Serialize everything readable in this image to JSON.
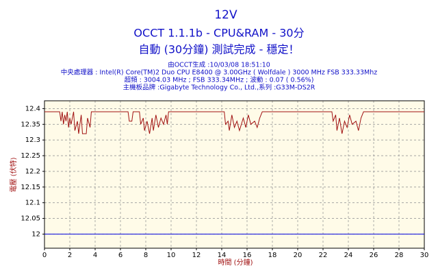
{
  "chart_data": {
    "type": "line",
    "title": "12V",
    "subtitle": "OCCT 1.1.1b - CPU&RAM - 30分",
    "status": "自動 (30分鐘) 測試完成 - 穩定！",
    "info": [
      "由OCCT生成 :10/03/08 18:51:10",
      "中央處理器 : Intel(R) Core(TM)2 Duo CPU E8400 @ 3.00GHz ( Wolfdale ) 3000 MHz FSB 333.33Mhz",
      "超頻 : 3004.03 MHz ; FSB 333.34MHz ; 波動 : 0.07 ( 0.56%)",
      "主機板品牌 :Gigabyte Technology Co., Ltd.,系列 :G33M-DS2R"
    ],
    "xlabel": "時間 (分鐘)",
    "ylabel": "電壓 (伏特)",
    "xlim": [
      0,
      30
    ],
    "xticks": [
      0,
      2,
      4,
      6,
      8,
      10,
      12,
      14,
      16,
      18,
      20,
      22,
      24,
      26,
      28,
      30
    ],
    "ylim": [
      11.955,
      12.425
    ],
    "yticks": [
      12,
      12.05,
      12.1,
      12.15,
      12.2,
      12.25,
      12.3,
      12.35,
      12.4
    ],
    "grid": true,
    "series": [
      {
        "color": "#a01010",
        "x": [
          0,
          1.2,
          1.3,
          1.4,
          1.5,
          1.6,
          1.7,
          1.8,
          1.9,
          2.0,
          2.1,
          2.3,
          2.4,
          2.6,
          2.7,
          2.9,
          3.0,
          3.3,
          3.4,
          3.6,
          3.7,
          6.6,
          6.7,
          6.9,
          7.0,
          7.5,
          7.6,
          7.8,
          7.9,
          8.1,
          8.3,
          8.5,
          8.6,
          8.8,
          9.0,
          9.2,
          9.4,
          9.6,
          9.7,
          9.8,
          14.2,
          14.3,
          14.5,
          14.6,
          14.8,
          15.0,
          15.2,
          15.4,
          15.7,
          15.9,
          16.1,
          16.3,
          16.6,
          16.8,
          17.0,
          17.2,
          22.7,
          22.8,
          23.0,
          23.1,
          23.3,
          23.5,
          23.7,
          23.9,
          24.1,
          24.3,
          24.6,
          24.8,
          25.0,
          25.2,
          30
        ],
        "values": [
          12.39,
          12.39,
          12.36,
          12.39,
          12.35,
          12.38,
          12.36,
          12.39,
          12.34,
          12.37,
          12.35,
          12.39,
          12.33,
          12.36,
          12.32,
          12.38,
          12.32,
          12.32,
          12.37,
          12.34,
          12.39,
          12.39,
          12.36,
          12.36,
          12.39,
          12.39,
          12.35,
          12.37,
          12.33,
          12.36,
          12.32,
          12.37,
          12.33,
          12.38,
          12.34,
          12.37,
          12.35,
          12.38,
          12.35,
          12.39,
          12.39,
          12.35,
          12.36,
          12.33,
          12.38,
          12.34,
          12.36,
          12.33,
          12.37,
          12.34,
          12.38,
          12.35,
          12.36,
          12.34,
          12.37,
          12.39,
          12.39,
          12.36,
          12.38,
          12.33,
          12.37,
          12.32,
          12.36,
          12.34,
          12.38,
          12.35,
          12.36,
          12.33,
          12.37,
          12.39,
          12.39
        ]
      },
      {
        "color": "#0000dd",
        "x": [
          0,
          30
        ],
        "values": [
          12,
          12
        ]
      }
    ]
  }
}
